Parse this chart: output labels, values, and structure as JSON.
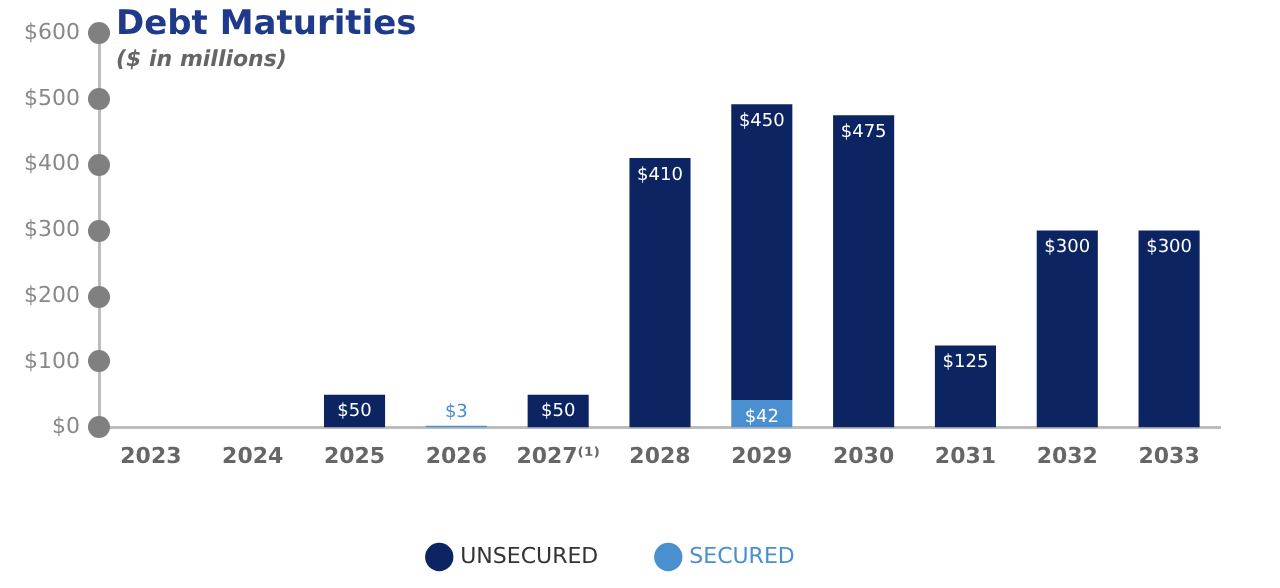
{
  "chart_data": {
    "type": "bar",
    "title": "Debt Maturities",
    "subtitle": "($ in millions)",
    "categories": [
      "2023",
      "2024",
      "2025",
      "2026",
      "2027⁽¹⁾",
      "2028",
      "2029",
      "2030",
      "2031",
      "2032",
      "2033"
    ],
    "stacked": true,
    "series": [
      {
        "name": "SECURED",
        "color": "#4a8fcf",
        "values": [
          null,
          null,
          null,
          3,
          null,
          null,
          42,
          null,
          null,
          null,
          null
        ],
        "value_labels": [
          null,
          null,
          null,
          "$3",
          null,
          null,
          "$42",
          null,
          null,
          null,
          null
        ]
      },
      {
        "name": "UNSECURED",
        "color": "#0c2461",
        "values": [
          null,
          null,
          50,
          null,
          50,
          410,
          450,
          475,
          125,
          300,
          300
        ],
        "value_labels": [
          null,
          null,
          "$50",
          null,
          "$50",
          "$410",
          "$450",
          "$475",
          "$125",
          "$300",
          "$300"
        ]
      }
    ],
    "ylim": [
      0,
      600
    ],
    "yticks": [
      {
        "value": 0,
        "label": "$0"
      },
      {
        "value": 100,
        "label": "$100"
      },
      {
        "value": 200,
        "label": "$200"
      },
      {
        "value": 300,
        "label": "$300"
      },
      {
        "value": 400,
        "label": "$400"
      },
      {
        "value": 500,
        "label": "$500"
      },
      {
        "value": 600,
        "label": "$600"
      }
    ],
    "grid": false,
    "legend": "bottom"
  }
}
